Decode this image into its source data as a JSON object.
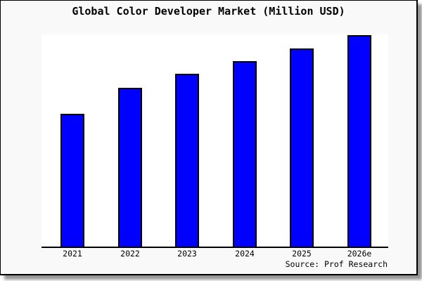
{
  "page": {
    "background_color": "#f9f9f9",
    "plot_background_color": "#ffffff",
    "border_color": "#000000"
  },
  "chart_data": {
    "type": "bar",
    "title": "Global Color Developer Market (Million USD)",
    "categories": [
      "2021",
      "2022",
      "2023",
      "2024",
      "2025",
      "2026e"
    ],
    "values": [
      62.8,
      75.1,
      81.6,
      87.7,
      93.7,
      100
    ],
    "values_are_relative_estimates": "no y-axis shown; values normalized so tallest bar (2026e) = 100",
    "xlabel": "",
    "ylabel": "",
    "ylim": [
      0,
      100
    ],
    "grid": false,
    "legend": false,
    "y_axis_visible": false,
    "bar_color": "#0000ff",
    "bar_border_color": "#000000",
    "source": "Source: Prof Research"
  }
}
